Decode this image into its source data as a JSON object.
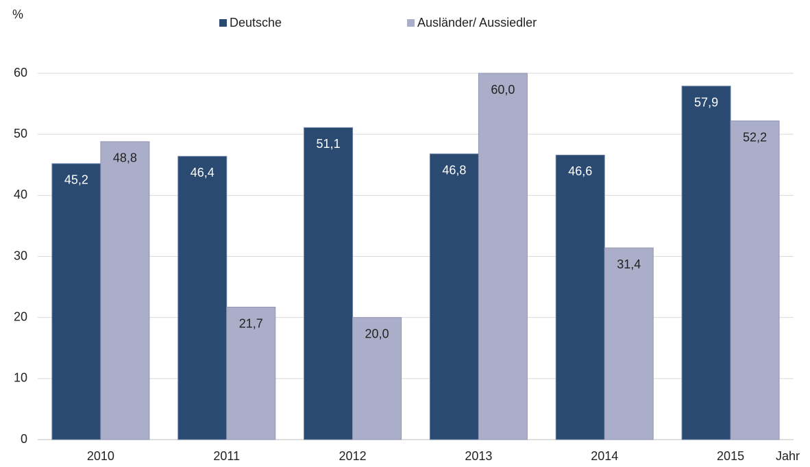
{
  "chart_data": {
    "type": "bar",
    "ylabel": "%",
    "xlabel": "Jahr",
    "categories": [
      "2010",
      "2011",
      "2012",
      "2013",
      "2014",
      "2015"
    ],
    "series": [
      {
        "name": "Deutsche",
        "color": "#2a4a72",
        "values": [
          45.2,
          46.4,
          51.1,
          46.8,
          46.6,
          57.9
        ],
        "value_labels": [
          "45,2",
          "46,4",
          "51,1",
          "46,8",
          "46,6",
          "57,9"
        ]
      },
      {
        "name": "Ausländer/ Aussiedler",
        "color": "#aaaec9",
        "values": [
          48.8,
          21.7,
          20.0,
          60.0,
          31.4,
          52.2
        ],
        "value_labels": [
          "48,8",
          "21,7",
          "20,0",
          "60,0",
          "31,4",
          "52,2"
        ]
      }
    ],
    "ylim": [
      0,
      60
    ],
    "yticks": [
      0,
      10,
      20,
      30,
      40,
      50,
      60
    ],
    "grid": true
  }
}
